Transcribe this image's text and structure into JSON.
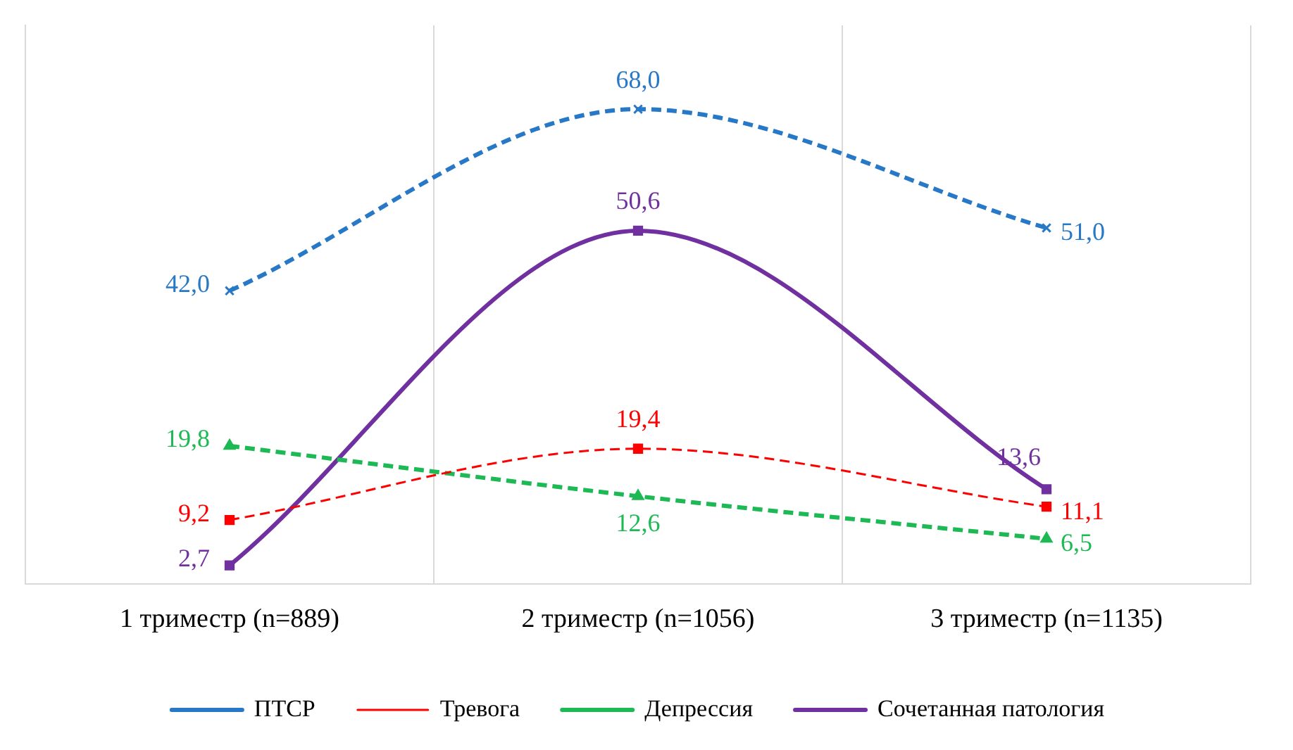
{
  "chart_data": {
    "type": "line",
    "categories": [
      "1 триместр (n=889)",
      "2 триместр (n=1056)",
      "3 триместр (n=1135)"
    ],
    "ylim": [
      0,
      80
    ],
    "grid": "x",
    "legend": "bottom",
    "tick_labels": "x",
    "series": [
      {
        "name": "ПТСР",
        "color": "#2878c8",
        "values": [
          42.0,
          68.0,
          51.0
        ],
        "value_labels": [
          "42,0",
          "68,0",
          "51,0"
        ],
        "marker": "cross",
        "line_style": "dashed"
      },
      {
        "name": "Тревога",
        "color": "#ff0000",
        "values": [
          9.2,
          19.4,
          11.1
        ],
        "value_labels": [
          "9,2",
          "19,4",
          "11,1"
        ],
        "marker": "square",
        "line_style": "dashed"
      },
      {
        "name": "Депрессия",
        "color": "#1db954",
        "values": [
          19.8,
          12.6,
          6.5
        ],
        "value_labels": [
          "19,8",
          "12,6",
          "6,5"
        ],
        "marker": "triangle",
        "line_style": "dashed"
      },
      {
        "name": "Сочетанная патология",
        "color": "#7030a0",
        "values": [
          2.7,
          50.6,
          13.6
        ],
        "value_labels": [
          "2,7",
          "50,6",
          "13,6"
        ],
        "marker": "square",
        "line_style": "solid"
      }
    ]
  }
}
